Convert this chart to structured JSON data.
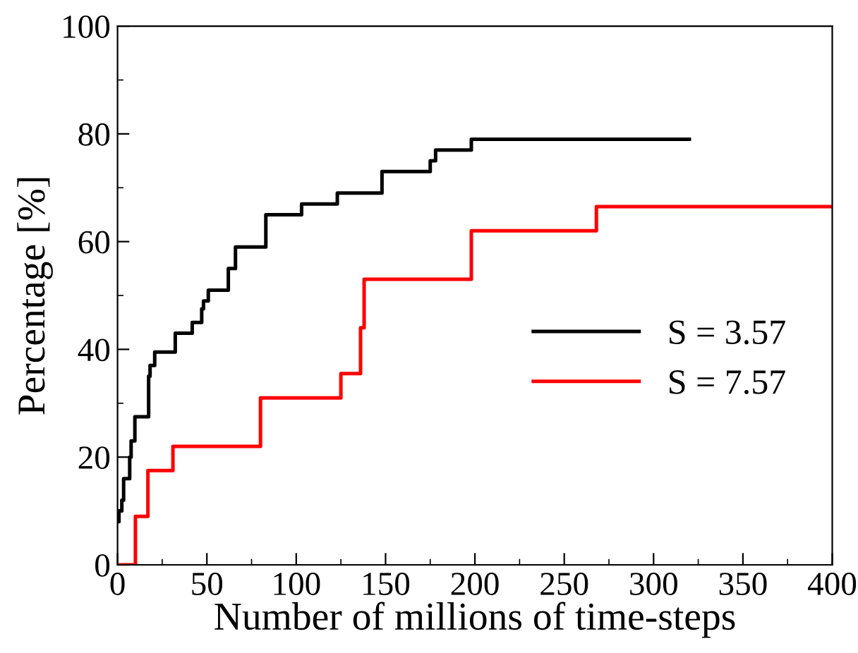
{
  "chart_data": {
    "type": "step",
    "xlabel": "Number of millions of time-steps",
    "ylabel": "Percentage [%]",
    "xlim": [
      0,
      400
    ],
    "xticks": [
      0,
      50,
      100,
      150,
      200,
      250,
      300,
      350,
      400
    ],
    "ylim": [
      0,
      100
    ],
    "yticks": [
      0,
      20,
      40,
      60,
      80,
      100
    ],
    "grid": false,
    "legend": "right",
    "line_style": "solid",
    "marker": "none",
    "series": [
      {
        "name": "S = 3.57",
        "color": "#000000",
        "x": [
          0,
          0.8,
          2.4,
          3.4,
          6.8,
          7.6,
          9.7,
          17.4,
          18.2,
          20.8,
          32.3,
          41.8,
          47.1,
          48.1,
          50.8,
          62,
          66,
          83,
          103,
          123,
          148,
          175,
          178,
          198,
          320
        ],
        "values": [
          8,
          10,
          12,
          16,
          20,
          23,
          27.5,
          35,
          37,
          39.5,
          43,
          45,
          47.5,
          49,
          51,
          55,
          59,
          65,
          67,
          69,
          73,
          75,
          77,
          79,
          79
        ]
      },
      {
        "name": "S = 7.57",
        "color": "#ff0000",
        "x": [
          0,
          10,
          17,
          31,
          80,
          125,
          136,
          138,
          198,
          268,
          400
        ],
        "values": [
          0,
          9,
          17.5,
          22,
          31,
          35.5,
          44,
          53,
          62,
          66.5,
          66.5
        ]
      }
    ]
  }
}
